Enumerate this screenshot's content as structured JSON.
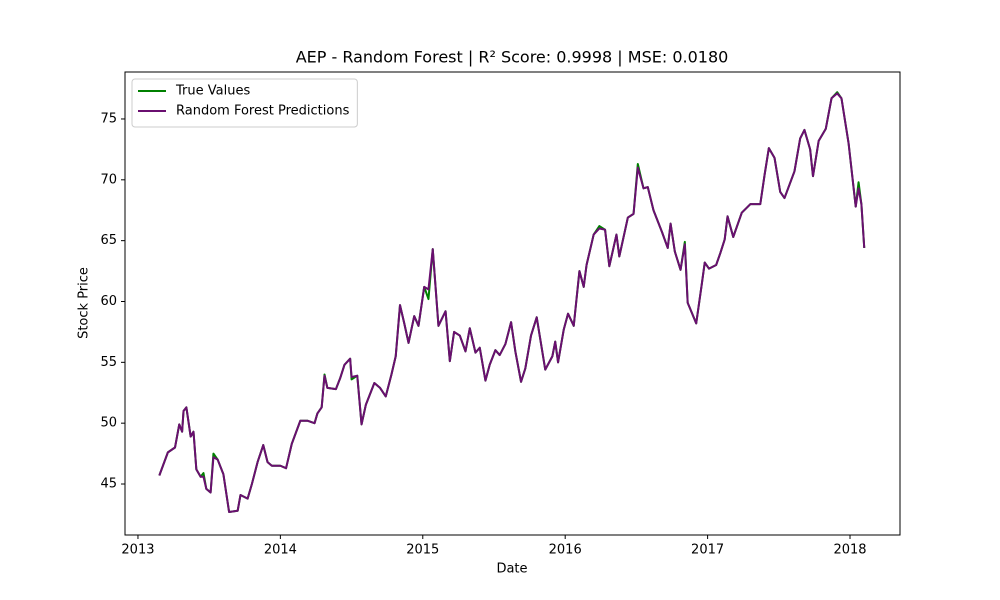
{
  "chart_data": {
    "type": "line",
    "title": "AEP - Random Forest | R² Score: 0.9998 | MSE: 0.0180",
    "xlabel": "Date",
    "ylabel": "Stock Price",
    "x": [
      2013.15,
      2013.21,
      2013.26,
      2013.29,
      2013.31,
      2013.32,
      2013.34,
      2013.37,
      2013.39,
      2013.41,
      2013.44,
      2013.46,
      2013.48,
      2013.51,
      2013.53,
      2013.56,
      2013.6,
      2013.64,
      2013.7,
      2013.72,
      2013.77,
      2013.8,
      2013.84,
      2013.88,
      2013.91,
      2013.94,
      2014.0,
      2014.04,
      2014.08,
      2014.14,
      2014.19,
      2014.24,
      2014.26,
      2014.29,
      2014.31,
      2014.33,
      2014.39,
      2014.42,
      2014.45,
      2014.49,
      2014.5,
      2014.54,
      2014.57,
      2014.6,
      2014.66,
      2014.7,
      2014.74,
      2014.78,
      2014.81,
      2014.84,
      2014.87,
      2014.9,
      2014.94,
      2014.97,
      2015.01,
      2015.04,
      2015.07,
      2015.11,
      2015.16,
      2015.19,
      2015.22,
      2015.26,
      2015.3,
      2015.33,
      2015.37,
      2015.4,
      2015.44,
      2015.47,
      2015.51,
      2015.54,
      2015.58,
      2015.62,
      2015.65,
      2015.69,
      2015.72,
      2015.76,
      2015.8,
      2015.86,
      2015.91,
      2015.93,
      2015.95,
      2015.99,
      2016.02,
      2016.06,
      2016.1,
      2016.13,
      2016.15,
      2016.2,
      2016.24,
      2016.28,
      2016.31,
      2016.36,
      2016.38,
      2016.44,
      2016.48,
      2016.51,
      2016.55,
      2016.58,
      2016.62,
      2016.68,
      2016.72,
      2016.74,
      2016.77,
      2016.81,
      2016.84,
      2016.86,
      2016.92,
      2016.96,
      2016.98,
      2017.01,
      2017.06,
      2017.09,
      2017.12,
      2017.14,
      2017.18,
      2017.24,
      2017.3,
      2017.37,
      2017.4,
      2017.43,
      2017.47,
      2017.51,
      2017.54,
      2017.61,
      2017.65,
      2017.68,
      2017.72,
      2017.74,
      2017.78,
      2017.83,
      2017.87,
      2017.91,
      2017.94,
      2017.99,
      2018.04,
      2018.06,
      2018.08,
      2018.1
    ],
    "series": [
      {
        "name": "True Values",
        "color": "#008000",
        "values": [
          45.7,
          47.6,
          48.0,
          49.9,
          49.3,
          51.0,
          51.3,
          48.9,
          49.3,
          46.2,
          45.6,
          45.9,
          44.6,
          44.3,
          47.5,
          47.0,
          45.8,
          42.7,
          42.8,
          44.1,
          43.8,
          45.0,
          46.8,
          48.2,
          46.8,
          46.5,
          46.5,
          46.3,
          48.3,
          50.2,
          50.2,
          50.0,
          50.8,
          51.3,
          54.0,
          52.9,
          52.8,
          53.7,
          54.8,
          55.3,
          53.6,
          53.9,
          49.9,
          51.5,
          53.3,
          52.9,
          52.2,
          54.0,
          55.5,
          59.7,
          58.2,
          56.6,
          58.8,
          58.0,
          61.2,
          60.2,
          64.3,
          58.0,
          59.2,
          55.1,
          57.5,
          57.2,
          55.9,
          57.8,
          55.8,
          56.2,
          53.5,
          54.8,
          56.0,
          55.6,
          56.5,
          58.3,
          55.9,
          53.4,
          54.5,
          57.2,
          58.7,
          54.4,
          55.5,
          56.7,
          55.0,
          57.7,
          59.0,
          58.0,
          62.5,
          61.2,
          63.0,
          65.5,
          66.2,
          65.9,
          62.9,
          65.5,
          63.7,
          66.9,
          67.2,
          71.3,
          69.3,
          69.4,
          67.5,
          65.7,
          64.4,
          66.4,
          64.1,
          62.6,
          64.9,
          59.9,
          58.2,
          61.5,
          63.2,
          62.7,
          63.0,
          64.0,
          65.1,
          67.0,
          65.3,
          67.3,
          68.0,
          68.0,
          70.4,
          72.6,
          71.8,
          69.0,
          68.5,
          70.7,
          73.4,
          74.1,
          72.5,
          70.3,
          73.2,
          74.2,
          76.7,
          77.2,
          76.7,
          73.0,
          67.8,
          69.8,
          68.0,
          64.4
        ]
      },
      {
        "name": "Random Forest Predictions",
        "color": "#6a0f70",
        "values": [
          45.7,
          47.6,
          48.0,
          49.9,
          49.3,
          51.0,
          51.3,
          48.9,
          49.3,
          46.2,
          45.6,
          45.6,
          44.6,
          44.3,
          47.2,
          47.0,
          45.8,
          42.7,
          42.8,
          44.1,
          43.8,
          45.0,
          46.8,
          48.2,
          46.8,
          46.5,
          46.5,
          46.3,
          48.3,
          50.2,
          50.2,
          50.0,
          50.8,
          51.3,
          53.9,
          52.9,
          52.8,
          53.7,
          54.8,
          55.3,
          53.8,
          53.9,
          49.9,
          51.5,
          53.3,
          52.9,
          52.2,
          54.0,
          55.5,
          59.7,
          58.2,
          56.6,
          58.8,
          58.0,
          61.2,
          61.0,
          64.3,
          58.0,
          59.2,
          55.1,
          57.5,
          57.2,
          55.9,
          57.8,
          55.8,
          56.2,
          53.5,
          54.8,
          56.0,
          55.6,
          56.5,
          58.3,
          55.9,
          53.4,
          54.5,
          57.2,
          58.7,
          54.4,
          55.5,
          56.7,
          55.0,
          57.7,
          59.0,
          58.0,
          62.5,
          61.2,
          63.0,
          65.5,
          66.0,
          65.9,
          62.9,
          65.5,
          63.7,
          66.9,
          67.2,
          71.0,
          69.3,
          69.4,
          67.5,
          65.7,
          64.4,
          66.4,
          64.1,
          62.6,
          64.7,
          59.9,
          58.2,
          61.5,
          63.2,
          62.7,
          63.0,
          64.0,
          65.1,
          67.0,
          65.3,
          67.3,
          68.0,
          68.0,
          70.4,
          72.6,
          71.8,
          69.0,
          68.5,
          70.7,
          73.4,
          74.1,
          72.5,
          70.3,
          73.2,
          74.2,
          76.7,
          77.1,
          76.7,
          73.0,
          67.8,
          69.3,
          68.0,
          64.4
        ]
      }
    ],
    "xlim": [
      2012.909,
      2018.351
    ],
    "xticks": [
      2013,
      2014,
      2015,
      2016,
      2017,
      2018
    ],
    "ylim": [
      40.81,
      78.86
    ],
    "yticks": [
      45,
      50,
      55,
      60,
      65,
      70,
      75
    ],
    "legend": "upper left"
  }
}
